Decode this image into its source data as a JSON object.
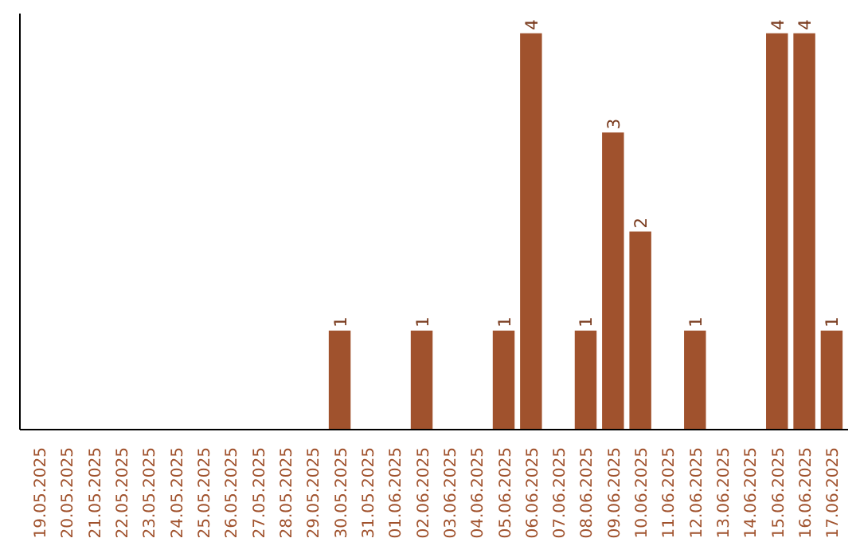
{
  "chart_data": {
    "type": "bar",
    "categories": [
      "19.05.2025",
      "20.05.2025",
      "21.05.2025",
      "22.05.2025",
      "23.05.2025",
      "24.05.2025",
      "25.05.2025",
      "26.05.2025",
      "27.05.2025",
      "28.05.2025",
      "29.05.2025",
      "30.05.2025",
      "31.05.2025",
      "01.06.2025",
      "02.06.2025",
      "03.06.2025",
      "04.06.2025",
      "05.06.2025",
      "06.06.2025",
      "07.06.2025",
      "08.06.2025",
      "09.06.2025",
      "10.06.2025",
      "11.06.2025",
      "12.06.2025",
      "13.06.2025",
      "14.06.2025",
      "15.06.2025",
      "16.06.2025",
      "17.06.2025"
    ],
    "values": [
      0,
      0,
      0,
      0,
      0,
      0,
      0,
      0,
      0,
      0,
      0,
      1,
      0,
      0,
      1,
      0,
      0,
      1,
      4,
      0,
      1,
      3,
      2,
      0,
      1,
      0,
      0,
      4,
      4,
      1
    ],
    "value_labels": [
      null,
      null,
      null,
      null,
      null,
      null,
      null,
      null,
      null,
      null,
      null,
      "1",
      null,
      null,
      "1",
      null,
      null,
      "1",
      "4",
      null,
      "1",
      "3",
      "2",
      null,
      "1",
      null,
      null,
      "4",
      "4",
      "1"
    ],
    "color": "#a0522d",
    "grid": false
  }
}
